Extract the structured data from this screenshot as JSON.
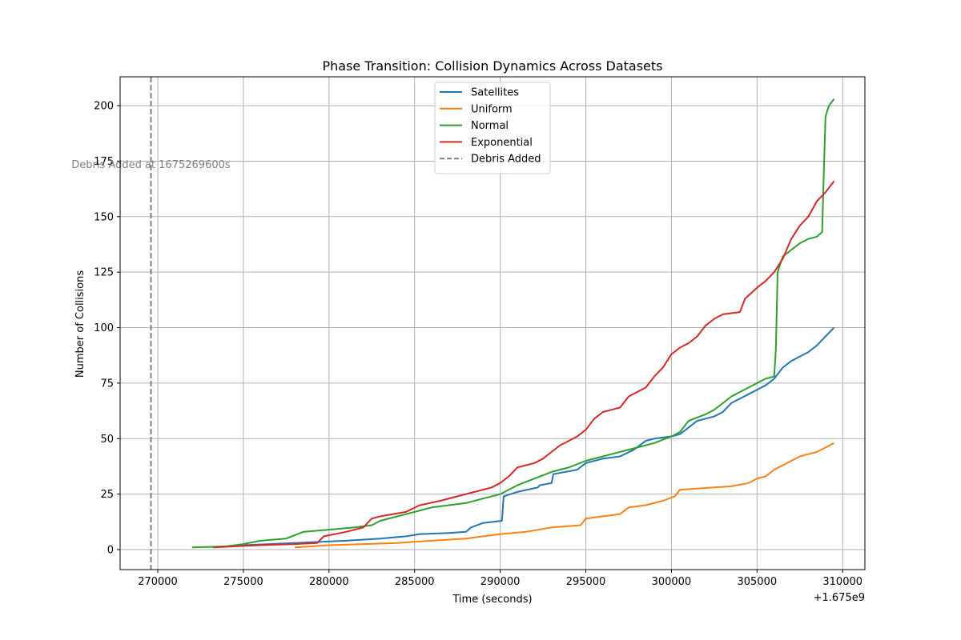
{
  "chart_data": {
    "type": "line",
    "title": "Phase Transition: Collision Dynamics Across Datasets",
    "xlabel": "Time (seconds)",
    "ylabel": "Number of Collisions",
    "x_offset_label": "+1.675e9",
    "x_offset": 1675000000,
    "xlim": [
      267800,
      311300
    ],
    "ylim": [
      -9,
      213
    ],
    "x_ticks": [
      270000,
      275000,
      280000,
      285000,
      290000,
      295000,
      300000,
      305000,
      310000
    ],
    "x_tick_labels": [
      "270000",
      "275000",
      "280000",
      "285000",
      "290000",
      "295000",
      "300000",
      "305000",
      "310000"
    ],
    "y_ticks": [
      0,
      25,
      50,
      75,
      100,
      125,
      150,
      175,
      200
    ],
    "y_tick_labels": [
      "0",
      "25",
      "50",
      "75",
      "100",
      "125",
      "150",
      "175",
      "200"
    ],
    "grid": true,
    "legend_position": "top-center",
    "series": [
      {
        "name": "Satellites",
        "color": "#1f77b4",
        "x": [
          273200,
          275000,
          278000,
          281000,
          283000,
          284500,
          285300,
          287000,
          288000,
          288300,
          289000,
          290100,
          290200,
          291000,
          292200,
          292300,
          293000,
          293100,
          294500,
          295000,
          296000,
          297000,
          297800,
          298500,
          299000,
          300000,
          300500,
          301000,
          301500,
          302000,
          302500,
          303000,
          303500,
          304000,
          304500,
          305000,
          305500,
          306000,
          306500,
          307000,
          307500,
          308000,
          308500,
          309000,
          309500
        ],
        "y": [
          1,
          2,
          3,
          4,
          5,
          6,
          7,
          7.5,
          8,
          10,
          12,
          13,
          24,
          26,
          28,
          29,
          30,
          34,
          36,
          39,
          41,
          42,
          45,
          49,
          50,
          51,
          52,
          55,
          58,
          59,
          60,
          62,
          66,
          68,
          70,
          72,
          74,
          77,
          82,
          85,
          87,
          89,
          92,
          96,
          100
        ]
      },
      {
        "name": "Uniform",
        "color": "#ff7f0e",
        "x": [
          278000,
          280000,
          282000,
          284000,
          286000,
          288000,
          289000,
          290000,
          291500,
          293000,
          294700,
          295000,
          296000,
          297000,
          297500,
          298500,
          299500,
          300200,
          300500,
          301500,
          302500,
          303500,
          304500,
          305000,
          305500,
          306000,
          306500,
          307000,
          307500,
          308000,
          308500,
          309000,
          309500
        ],
        "y": [
          1,
          2,
          2.5,
          3,
          4,
          5,
          6,
          7,
          8,
          10,
          11,
          14,
          15,
          16,
          19,
          20,
          22,
          24,
          27,
          27.5,
          28,
          28.5,
          30,
          32,
          33,
          36,
          38,
          40,
          42,
          43,
          44,
          46,
          48
        ]
      },
      {
        "name": "Normal",
        "color": "#2ca02c",
        "x": [
          272000,
          274000,
          275000,
          276000,
          277500,
          278500,
          280000,
          281500,
          282500,
          283000,
          284000,
          285000,
          286000,
          287000,
          288000,
          289000,
          290000,
          290500,
          291000,
          292000,
          293000,
          294000,
          295000,
          296000,
          297000,
          298000,
          299000,
          300000,
          300500,
          301000,
          302000,
          302500,
          303000,
          303500,
          304000,
          304500,
          305000,
          305500,
          306000,
          306100,
          306200,
          306500,
          307000,
          307500,
          308000,
          308500,
          308800,
          308900,
          309000,
          309200,
          309500
        ],
        "y": [
          1,
          1.5,
          2.5,
          4,
          5,
          8,
          9,
          10,
          11,
          13,
          15,
          17,
          19,
          20,
          21,
          23,
          25,
          27,
          29,
          32,
          35,
          37,
          40,
          42,
          44,
          46,
          48,
          51,
          53,
          58,
          61,
          63,
          66,
          69,
          71,
          73,
          75,
          77,
          78,
          90,
          125,
          132,
          135,
          138,
          140,
          141,
          143,
          170,
          195,
          200,
          203
        ]
      },
      {
        "name": "Exponential",
        "color": "#d62728",
        "x": [
          273300,
          274500,
          276000,
          278000,
          279300,
          279700,
          281000,
          282000,
          282500,
          283000,
          284500,
          285300,
          286500,
          287500,
          288500,
          289500,
          290000,
          290500,
          291000,
          292000,
          292500,
          293000,
          293500,
          294000,
          294500,
          295000,
          295500,
          296000,
          297000,
          297500,
          298000,
          298500,
          299000,
          299500,
          300000,
          300500,
          301000,
          301500,
          302000,
          302500,
          303000,
          304000,
          304300,
          305000,
          305500,
          306000,
          306500,
          307000,
          307500,
          308000,
          308500,
          309000,
          309500
        ],
        "y": [
          1,
          1.5,
          2,
          2.5,
          3,
          6,
          8,
          10,
          14,
          15,
          17,
          20,
          22,
          24,
          26,
          28,
          30,
          33,
          37,
          39,
          41,
          44,
          47,
          49,
          51,
          54,
          59,
          62,
          64,
          69,
          71,
          73,
          78,
          82,
          88,
          91,
          93,
          96,
          101,
          104,
          106,
          107,
          113,
          118,
          121,
          125,
          131,
          140,
          146,
          150,
          157,
          161,
          166
        ]
      }
    ],
    "annotations": [
      {
        "type": "vline",
        "x": 269600,
        "label": "Debris Added",
        "color": "#808080",
        "text": "Debris Added at 1675269600s",
        "text_y": 172
      }
    ]
  }
}
